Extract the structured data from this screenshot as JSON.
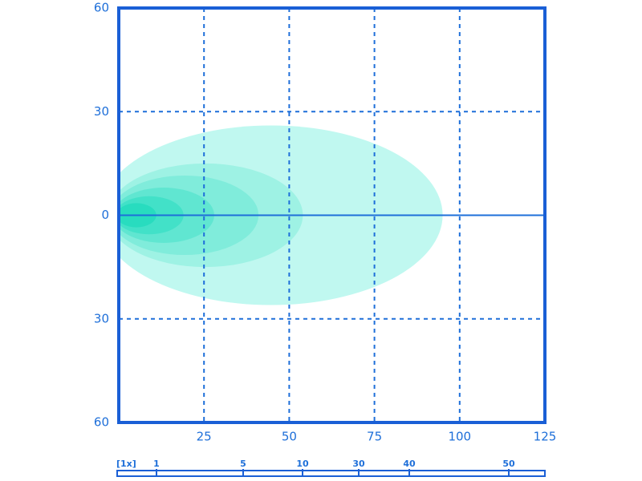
{
  "chart_data": {
    "type": "contour",
    "xlim": [
      0,
      125
    ],
    "xticks": [
      25,
      50,
      75,
      100,
      125
    ],
    "ylim": [
      -60,
      60
    ],
    "yticks": [
      {
        "value": -60,
        "label": "60"
      },
      {
        "value": -30,
        "label": "30"
      },
      0,
      30,
      60
    ],
    "grid": true,
    "series": [
      {
        "color": "#c0f8f0",
        "reach": 95,
        "spread": 26
      },
      {
        "color": "#9ef2e4",
        "reach": 54,
        "spread": 15
      },
      {
        "color": "#80ecdb",
        "reach": 41,
        "spread": 11.5
      },
      {
        "color": "#60e6d1",
        "reach": 28,
        "spread": 8
      },
      {
        "color": "#42e1c8",
        "reach": 19,
        "spread": 5.5
      },
      {
        "color": "#28dcbf",
        "reach": 11,
        "spread": 3.5
      }
    ],
    "scale": {
      "label": "[1x]",
      "ticks": [
        1,
        5,
        10,
        30,
        40,
        50
      ]
    }
  }
}
